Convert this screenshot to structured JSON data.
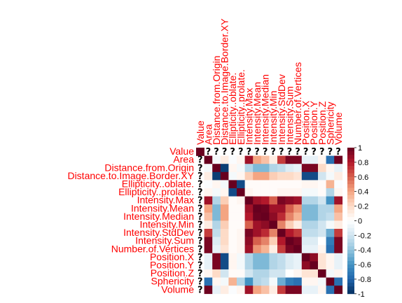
{
  "chart_data": {
    "type": "heatmap",
    "title": "",
    "variables": [
      "Value",
      "Area",
      "Distance.from.Origin",
      "Distance.to.Image.Border.XY",
      "Ellipticity..oblate.",
      "Ellipticity..prolate.",
      "Intensity.Max",
      "Intensity.Mean",
      "Intensity.Median",
      "Intensity.Min",
      "Intensity.StdDev",
      "Intensity.Sum",
      "Number.of.Vertices",
      "Position.X",
      "Position.Y",
      "Position.Z",
      "Sphericity",
      "Volume"
    ],
    "missing_marker": "?",
    "matrix": [
      [
        1.0,
        null,
        null,
        null,
        null,
        null,
        null,
        null,
        null,
        null,
        null,
        null,
        null,
        null,
        null,
        null,
        null,
        null
      ],
      [
        null,
        1.0,
        -0.05,
        0.1,
        -0.02,
        0.05,
        0.85,
        0.4,
        0.3,
        0.1,
        0.7,
        0.95,
        0.95,
        -0.1,
        -0.1,
        0.05,
        -0.75,
        0.98
      ],
      [
        null,
        -0.05,
        1.0,
        -0.95,
        0.05,
        -0.05,
        -0.3,
        -0.45,
        -0.45,
        -0.3,
        -0.25,
        -0.15,
        -0.1,
        0.95,
        0.95,
        0.2,
        0.05,
        -0.1
      ],
      [
        null,
        0.1,
        -0.95,
        1.0,
        -0.05,
        0.05,
        0.25,
        0.4,
        0.4,
        0.25,
        0.2,
        0.2,
        0.15,
        -0.9,
        -0.9,
        -0.2,
        -0.05,
        0.1
      ],
      [
        null,
        -0.02,
        0.05,
        -0.05,
        1.0,
        -0.9,
        0.02,
        0.02,
        0.02,
        0.02,
        0.02,
        0.02,
        0.02,
        0.05,
        0.05,
        0.02,
        0.35,
        -0.02
      ],
      [
        null,
        0.05,
        -0.05,
        0.05,
        -0.9,
        1.0,
        0.05,
        0.02,
        0.02,
        0.02,
        0.05,
        0.05,
        0.05,
        -0.05,
        -0.05,
        0.02,
        -0.3,
        0.05
      ],
      [
        null,
        0.85,
        -0.3,
        0.25,
        0.02,
        0.05,
        1.0,
        0.85,
        0.8,
        0.6,
        0.95,
        0.9,
        0.85,
        -0.3,
        -0.3,
        -0.2,
        -0.6,
        0.85
      ],
      [
        null,
        0.4,
        -0.45,
        0.4,
        0.02,
        0.02,
        0.85,
        1.0,
        0.98,
        0.85,
        0.85,
        0.6,
        0.45,
        -0.45,
        -0.45,
        -0.3,
        -0.3,
        0.4
      ],
      [
        null,
        0.3,
        -0.45,
        0.4,
        0.02,
        0.02,
        0.8,
        0.98,
        1.0,
        0.9,
        0.75,
        0.5,
        0.35,
        -0.45,
        -0.45,
        -0.3,
        -0.25,
        0.3
      ],
      [
        null,
        0.1,
        -0.3,
        0.25,
        0.02,
        0.02,
        0.6,
        0.85,
        0.9,
        1.0,
        0.5,
        0.25,
        0.1,
        -0.3,
        -0.3,
        -0.2,
        -0.05,
        0.1
      ],
      [
        null,
        0.7,
        -0.25,
        0.2,
        0.02,
        0.05,
        0.95,
        0.85,
        0.75,
        0.5,
        1.0,
        0.8,
        0.7,
        -0.25,
        -0.25,
        -0.2,
        -0.5,
        0.7
      ],
      [
        null,
        0.95,
        -0.15,
        0.2,
        0.02,
        0.05,
        0.9,
        0.6,
        0.5,
        0.25,
        0.8,
        1.0,
        0.95,
        -0.15,
        -0.15,
        0.0,
        -0.7,
        0.95
      ],
      [
        null,
        0.95,
        -0.1,
        0.15,
        0.02,
        0.05,
        0.85,
        0.45,
        0.35,
        0.1,
        0.7,
        0.95,
        1.0,
        -0.1,
        -0.1,
        0.05,
        -0.75,
        0.95
      ],
      [
        null,
        -0.1,
        0.95,
        -0.9,
        0.05,
        -0.05,
        -0.3,
        -0.45,
        -0.45,
        -0.3,
        -0.25,
        -0.15,
        -0.1,
        1.0,
        0.9,
        0.15,
        0.05,
        -0.1
      ],
      [
        null,
        -0.1,
        0.95,
        -0.9,
        0.05,
        -0.05,
        -0.3,
        -0.45,
        -0.45,
        -0.3,
        -0.25,
        -0.15,
        -0.1,
        0.9,
        1.0,
        0.15,
        0.05,
        -0.1
      ],
      [
        null,
        0.05,
        0.2,
        -0.2,
        0.02,
        0.02,
        -0.2,
        -0.3,
        -0.3,
        -0.2,
        -0.2,
        0.0,
        0.05,
        0.15,
        0.15,
        1.0,
        -0.05,
        0.05
      ],
      [
        null,
        -0.75,
        0.05,
        -0.05,
        0.35,
        -0.3,
        -0.6,
        -0.3,
        -0.25,
        -0.05,
        -0.5,
        -0.7,
        -0.75,
        0.05,
        0.05,
        -0.05,
        1.0,
        -0.75
      ],
      [
        null,
        0.98,
        -0.1,
        0.1,
        -0.02,
        0.05,
        0.85,
        0.4,
        0.3,
        0.1,
        0.7,
        0.95,
        0.95,
        -0.1,
        -0.1,
        0.05,
        -0.75,
        1.0
      ]
    ],
    "colorbar": {
      "ticks": [
        "1",
        "0.8",
        "0.6",
        "0.4",
        "0.2",
        "0",
        "-0.2",
        "-0.4",
        "-0.6",
        "-0.8",
        "-1"
      ],
      "range": [
        -1,
        1
      ],
      "colors": [
        "#67001F",
        "#B2182B",
        "#D6604D",
        "#F4A582",
        "#FDDBC7",
        "#FFFFFF",
        "#D1E5F0",
        "#92C5DE",
        "#4393C3",
        "#2166AC",
        "#053061"
      ]
    },
    "label_color": "#ff0000"
  }
}
